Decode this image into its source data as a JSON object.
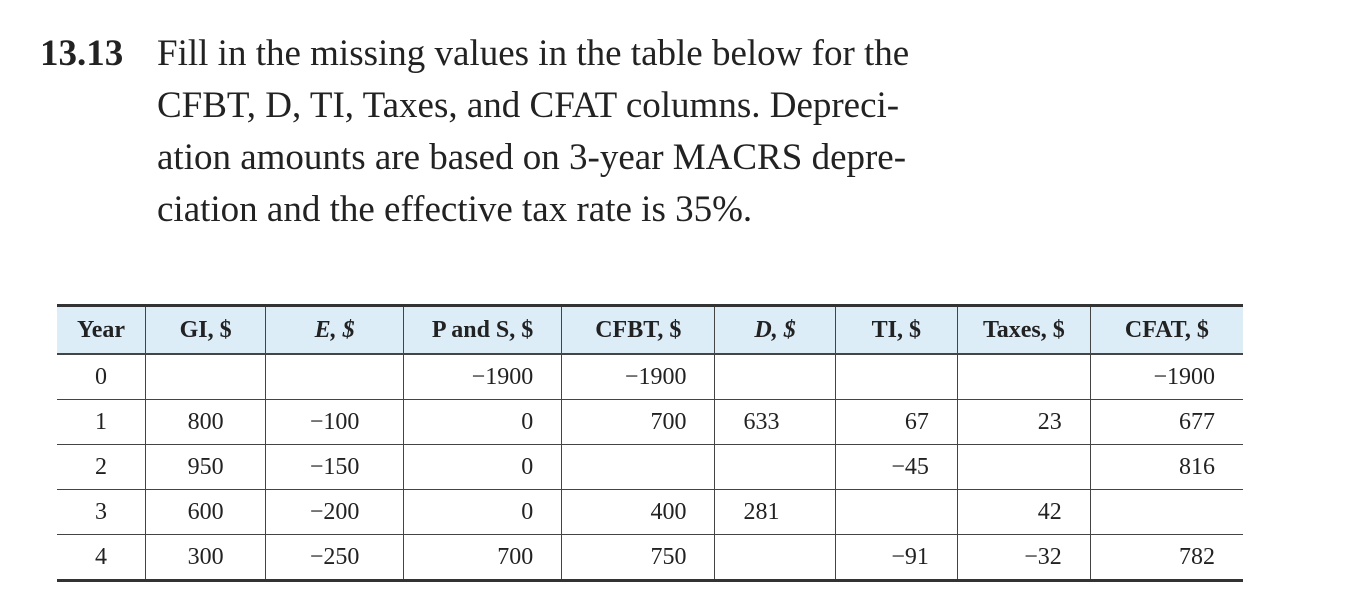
{
  "problem": {
    "number": "13.13",
    "lines": [
      "Fill in the missing values in the table below for the",
      "CFBT, D, TI, Taxes, and CFAT columns. Depreci-",
      "ation amounts are based on 3-year MACRS depre-",
      "ciation and the effective tax rate is 35%."
    ]
  },
  "table": {
    "headers": [
      "Year",
      "GI, $",
      "E, $",
      "P and S, $",
      "CFBT, $",
      "D, $",
      "TI, $",
      "Taxes, $",
      "CFAT, $"
    ],
    "rows": [
      [
        "0",
        null,
        null,
        "−1900",
        "−1900",
        null,
        null,
        null,
        "−1900"
      ],
      [
        "1",
        "800",
        "−100",
        "0",
        "700",
        "633",
        "67",
        "23",
        "677"
      ],
      [
        "2",
        "950",
        "−150",
        "0",
        null,
        null,
        "−45",
        null,
        "816"
      ],
      [
        "3",
        "600",
        "−200",
        "0",
        "400",
        "281",
        null,
        "42",
        null
      ],
      [
        "4",
        "300",
        "−250",
        "700",
        "750",
        null,
        "−91",
        "−32",
        "782"
      ]
    ]
  }
}
